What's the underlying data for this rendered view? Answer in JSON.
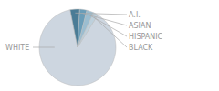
{
  "chart_data": {
    "type": "pie",
    "categories": [
      "WHITE",
      "A.I.",
      "ASIAN",
      "HISPANIC",
      "BLACK"
    ],
    "values": [
      88,
      4,
      3,
      3,
      2
    ],
    "colors": [
      "#cdd6e0",
      "#4a7c96",
      "#6a9db8",
      "#9bbdd0",
      "#bdd0dc"
    ]
  }
}
